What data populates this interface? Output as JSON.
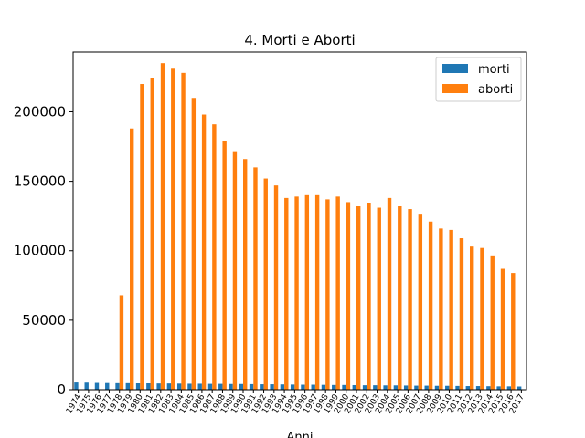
{
  "chart_data": {
    "type": "bar",
    "title": "4. Morti e Aborti",
    "xlabel": "Anni",
    "ylabel": "",
    "ylim": [
      0,
      243000
    ],
    "yticks": [
      0,
      50000,
      100000,
      150000,
      200000
    ],
    "grid": false,
    "legend_position": "top-right",
    "categories": [
      "1974",
      "1975",
      "1976",
      "1977",
      "1978",
      "1979",
      "1980",
      "1981",
      "1982",
      "1983",
      "1984",
      "1985",
      "1986",
      "1987",
      "1988",
      "1989",
      "1990",
      "1991",
      "1992",
      "1993",
      "1994",
      "1995",
      "1996",
      "1997",
      "1998",
      "1999",
      "2000",
      "2001",
      "2002",
      "2003",
      "2004",
      "2005",
      "2006",
      "2007",
      "2008",
      "2009",
      "2010",
      "2011",
      "2012",
      "2013",
      "2014",
      "2015",
      "2016",
      "2017"
    ],
    "series": [
      {
        "name": "morti",
        "color": "#1f77b4",
        "values": [
          5200,
          5100,
          4900,
          4800,
          4700,
          4700,
          4600,
          4600,
          4500,
          4500,
          4400,
          4300,
          4300,
          4200,
          4200,
          4100,
          4100,
          4000,
          3900,
          3900,
          3800,
          3700,
          3600,
          3600,
          3500,
          3400,
          3400,
          3300,
          3200,
          3200,
          3100,
          3100,
          3000,
          2900,
          2900,
          2800,
          2800,
          2700,
          2600,
          2600,
          2500,
          2400,
          2400,
          2300
        ]
      },
      {
        "name": "aborti",
        "color": "#ff7f0e",
        "values": [
          0,
          0,
          0,
          0,
          68000,
          188000,
          220000,
          224000,
          235000,
          231000,
          228000,
          210000,
          198000,
          191000,
          179000,
          171000,
          166000,
          160000,
          152000,
          147000,
          138000,
          139000,
          140000,
          140000,
          137000,
          139000,
          135000,
          132000,
          134000,
          131000,
          138000,
          132000,
          130000,
          126000,
          121000,
          116000,
          115000,
          109000,
          103000,
          102000,
          96000,
          87000,
          84000,
          0
        ]
      }
    ]
  }
}
